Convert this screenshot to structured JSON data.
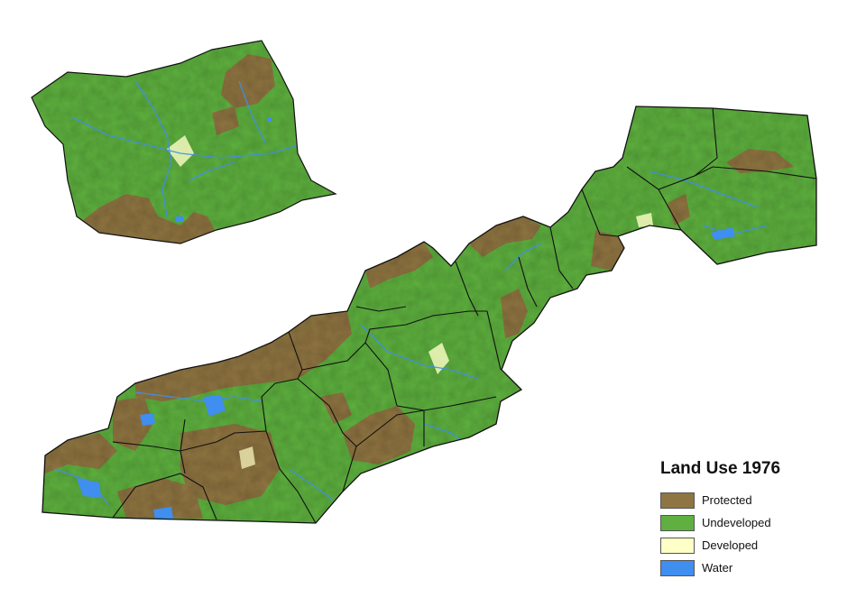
{
  "legend": {
    "title": "Land Use 1976",
    "items": [
      {
        "key": "protected",
        "label": "Protected",
        "color": "#8f7543"
      },
      {
        "key": "undeveloped",
        "label": "Undeveloped",
        "color": "#5fb040"
      },
      {
        "key": "developed",
        "label": "Developed",
        "color": "#ffffc8"
      },
      {
        "key": "water",
        "label": "Water",
        "color": "#3f8ef0"
      }
    ]
  },
  "colors": {
    "county_border": "#111111",
    "river": "#3f8ef0",
    "background": "#ffffff"
  }
}
